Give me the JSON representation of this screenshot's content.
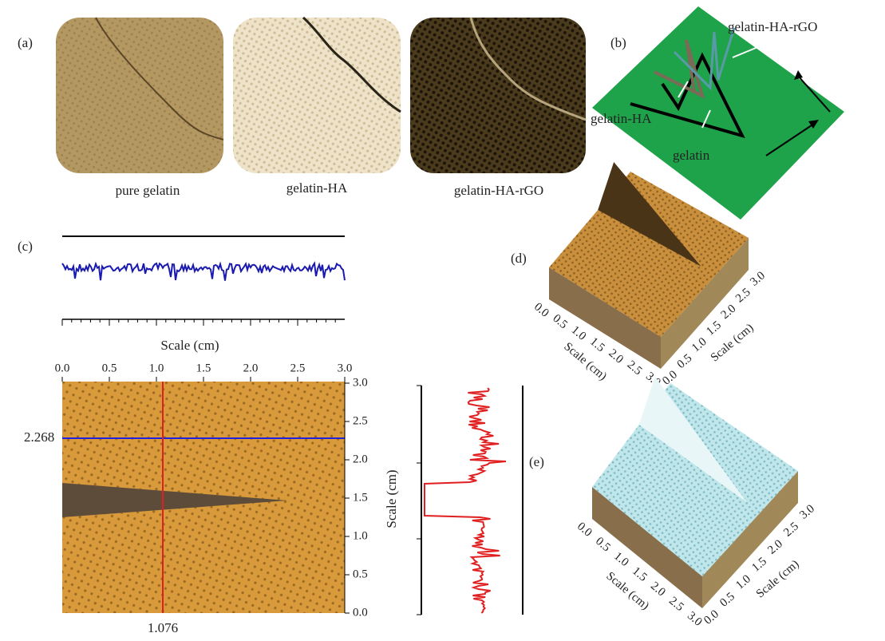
{
  "panel_a": {
    "label": "(a)",
    "captions": [
      "pure gelatin",
      "gelatin-HA",
      "gelatin-HA-rGO"
    ]
  },
  "panel_b": {
    "label": "(b)",
    "labels": [
      "gelatin-HA-rGO",
      "gelatin-HA",
      "gelatin"
    ]
  },
  "panel_c": {
    "label": "(c)",
    "axis_title": "Scale (cm)",
    "top_ticks": [
      "0.0",
      "0.5",
      "1.0",
      "1.5",
      "2.0",
      "2.5",
      "3.0"
    ],
    "right_ticks": [
      "0.0",
      "0.5",
      "1.0",
      "1.5",
      "2.0",
      "2.5",
      "3.0"
    ],
    "h_line_label": "2.268",
    "v_line_label": "1.076",
    "side_axis_title": "Scale (cm)"
  },
  "panel_d": {
    "label": "(d)",
    "x_ticks": [
      "0.0",
      "0.5",
      "1.0",
      "1.5",
      "2.0",
      "2.5",
      "3.0"
    ],
    "y_ticks": [
      "0.0",
      "0.5",
      "1.0",
      "1.5",
      "2.0",
      "2.5",
      "3.0"
    ],
    "x_title": "Scale (cm)",
    "y_title": "Scale (cm)"
  },
  "panel_e": {
    "label": "(e)",
    "x_ticks": [
      "0.0",
      "0.5",
      "1.0",
      "1.5",
      "2.0",
      "2.5",
      "3.0"
    ],
    "y_ticks": [
      "0.0",
      "0.5",
      "1.0",
      "1.5",
      "2.0",
      "2.5",
      "3.0"
    ],
    "x_title": "Scale (cm)",
    "y_title": "Scale (cm)"
  }
}
